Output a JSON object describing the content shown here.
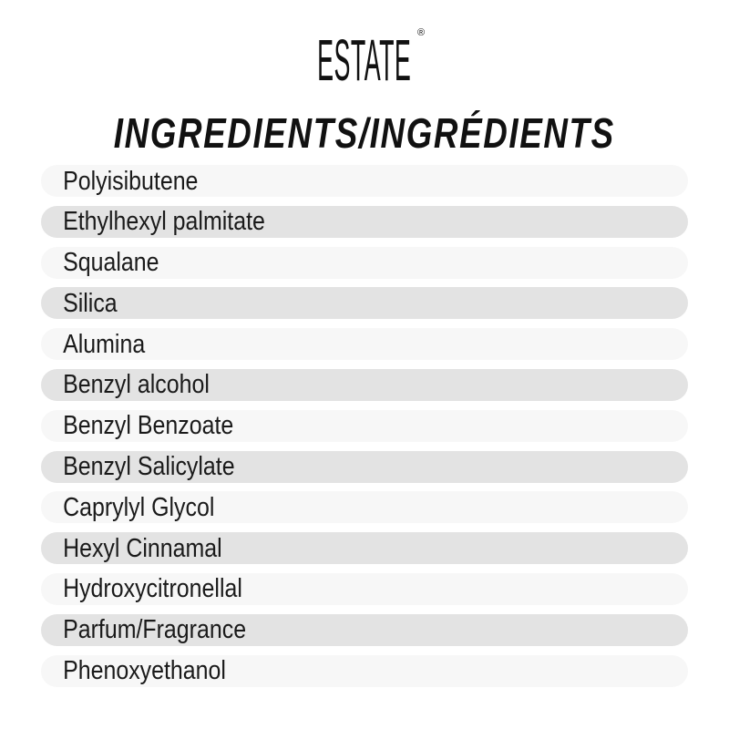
{
  "brand": {
    "logo_text": "ESTATE",
    "registered_mark": "®"
  },
  "title": "INGREDIENTS/INGRÉDIENTS",
  "ingredients": [
    "Polyisibutene",
    "Ethylhexyl palmitate",
    "Squalane",
    "Silica",
    "Alumina",
    "Benzyl alcohol",
    "Benzyl Benzoate",
    "Benzyl Salicylate",
    "Caprylyl Glycol",
    "Hexyl Cinnamal",
    "Hydroxycitronellal",
    "Parfum/Fragrance",
    "Phenoxyethanol"
  ],
  "colors": {
    "row_light": "#f7f7f7",
    "row_dark": "#e3e3e3",
    "text": "#111111"
  }
}
